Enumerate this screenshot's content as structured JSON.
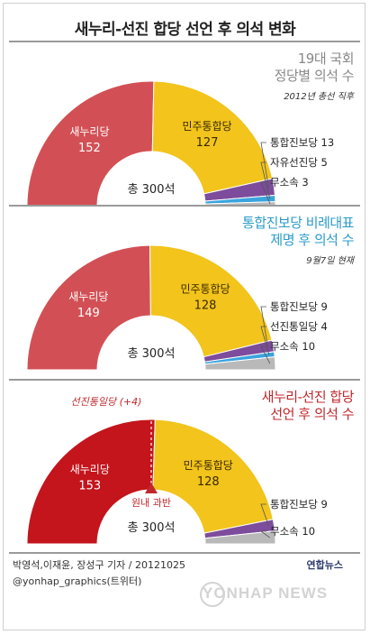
{
  "title": "새누리-선진 합당 선언 후 의석 변화",
  "colors": {
    "saenuri": "#d25055",
    "saenuri_dark": "#c4141c",
    "minjoo": "#f2c41c",
    "unified": "#7d4c9c",
    "liberty": "#3aa4dd",
    "independent": "#b9b9b9"
  },
  "chart_data": [
    {
      "type": "pie",
      "heading": [
        "19대 국회",
        "정당별 의석 수"
      ],
      "heading_color": "#888888",
      "note": "2012년 총선 직후",
      "total": 300,
      "total_label": "총 300석",
      "series": [
        {
          "name": "새누리당",
          "value": 152,
          "label": "152",
          "color": "#d25055"
        },
        {
          "name": "민주통합당",
          "value": 127,
          "label": "127",
          "color": "#f2c41c"
        },
        {
          "name": "통합진보당",
          "value": 13,
          "label": "통합진보당 13",
          "color": "#7d4c9c"
        },
        {
          "name": "자유선진당",
          "value": 5,
          "label": "자유선진당 5",
          "color": "#3aa4dd"
        },
        {
          "name": "무소속",
          "value": 3,
          "label": "무소속 3",
          "color": "#b9b9b9"
        }
      ]
    },
    {
      "type": "pie",
      "heading": [
        "통합진보당 비례대표",
        "제명 후 의석 수"
      ],
      "heading_color": "#2b9bc9",
      "note": "9월7일 현재",
      "total": 300,
      "total_label": "총 300석",
      "series": [
        {
          "name": "새누리당",
          "value": 149,
          "label": "149",
          "color": "#d25055"
        },
        {
          "name": "민주통합당",
          "value": 128,
          "label": "128",
          "color": "#f2c41c"
        },
        {
          "name": "통합진보당",
          "value": 9,
          "label": "통합진보당 9",
          "color": "#7d4c9c"
        },
        {
          "name": "선진통일당",
          "value": 4,
          "label": "선진통일당 4",
          "color": "#3aa4dd"
        },
        {
          "name": "무소속",
          "value": 10,
          "label": "무소속 10",
          "color": "#b9b9b9"
        }
      ]
    },
    {
      "type": "pie",
      "heading": [
        "새누리-선진 합당",
        "선언 후 의석 수"
      ],
      "heading_color": "#c0282d",
      "annotation_top": "선진통일당 (+4)",
      "annotation_bottom": "원내 과반",
      "total": 300,
      "total_label": "총 300석",
      "series": [
        {
          "name": "새누리당",
          "value": 153,
          "label": "153",
          "color": "#c4141c"
        },
        {
          "name": "민주통합당",
          "value": 128,
          "label": "128",
          "color": "#f2c41c"
        },
        {
          "name": "통합진보당",
          "value": 9,
          "label": "통합진보당 9",
          "color": "#7d4c9c"
        },
        {
          "name": "무소속",
          "value": 10,
          "label": "무소속 10",
          "color": "#b9b9b9"
        }
      ]
    }
  ],
  "credit_line1": "박영석,이재윤, 장성구 기자 / 20121025",
  "credit_line2": "@yonhap_graphics(트위터)",
  "logo": "연합뉴스",
  "watermark": "YONHAP NEWS"
}
